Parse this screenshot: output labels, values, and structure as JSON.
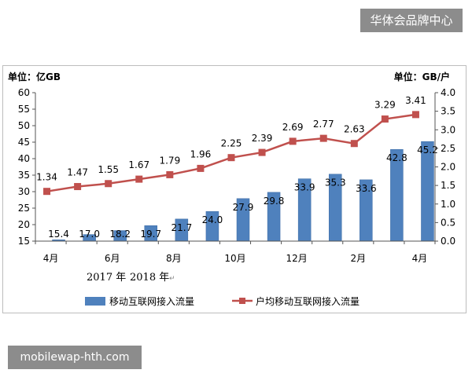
{
  "watermarks": {
    "top": "华体会品牌中心",
    "bottom": "mobilewap-hth.com"
  },
  "colors": {
    "bar": "#4f81bd",
    "bar_edge": "#3a6aa4",
    "line": "#c0504d",
    "axis": "#555555",
    "text": "#000000"
  },
  "chart_data": {
    "type": "bar",
    "y_left_label": "单位：亿GB",
    "y_right_label": "单位：GB/户",
    "y_left_range": [
      15,
      60
    ],
    "y_left_ticks": [
      15,
      20,
      25,
      30,
      35,
      40,
      45,
      50,
      55,
      60
    ],
    "y_right_range": [
      0.0,
      4.0
    ],
    "y_right_ticks": [
      "0.0",
      "0.5",
      "1.0",
      "1.5",
      "2.0",
      "2.5",
      "3.0",
      "3.5",
      "4.0"
    ],
    "categories": [
      "2017-04",
      "2017-05",
      "2017-06",
      "2017-07",
      "2017-08",
      "2017-09",
      "2017-10",
      "2017-11",
      "2017-12",
      "2018-01",
      "2018-02",
      "2018-03",
      "2018-04"
    ],
    "x_tick_labels": [
      "4月",
      "",
      "6月",
      "",
      "8月",
      "",
      "10月",
      "",
      "12月",
      "",
      "2月",
      "",
      "4月"
    ],
    "year_labels": [
      "2017 年",
      "2018 年"
    ],
    "year_mark": "↵",
    "series": [
      {
        "name": "移动互联网接入流量",
        "type": "bar",
        "axis": "left",
        "values": [
          15.4,
          17.0,
          18.2,
          19.7,
          21.7,
          24.0,
          27.9,
          29.8,
          33.9,
          35.3,
          33.6,
          42.8,
          45.2
        ],
        "labels": [
          "15.4",
          "17.0",
          "18.2",
          "19.7",
          "21.7",
          "24.0",
          "27.9",
          "29.8",
          "33.9",
          "35.3",
          "33.6",
          "42.8",
          "45.2"
        ]
      },
      {
        "name": "户均移动互联网接入流量",
        "type": "line",
        "axis": "right",
        "values": [
          1.34,
          1.47,
          1.55,
          1.67,
          1.79,
          1.96,
          2.25,
          2.39,
          2.69,
          2.77,
          2.63,
          3.29,
          3.41
        ],
        "labels": [
          "1.34",
          "1.47",
          "1.55",
          "1.67",
          "1.79",
          "1.96",
          "2.25",
          "2.39",
          "2.69",
          "2.77",
          "2.63",
          "3.29",
          "3.41"
        ]
      }
    ],
    "legend_position": "bottom"
  }
}
